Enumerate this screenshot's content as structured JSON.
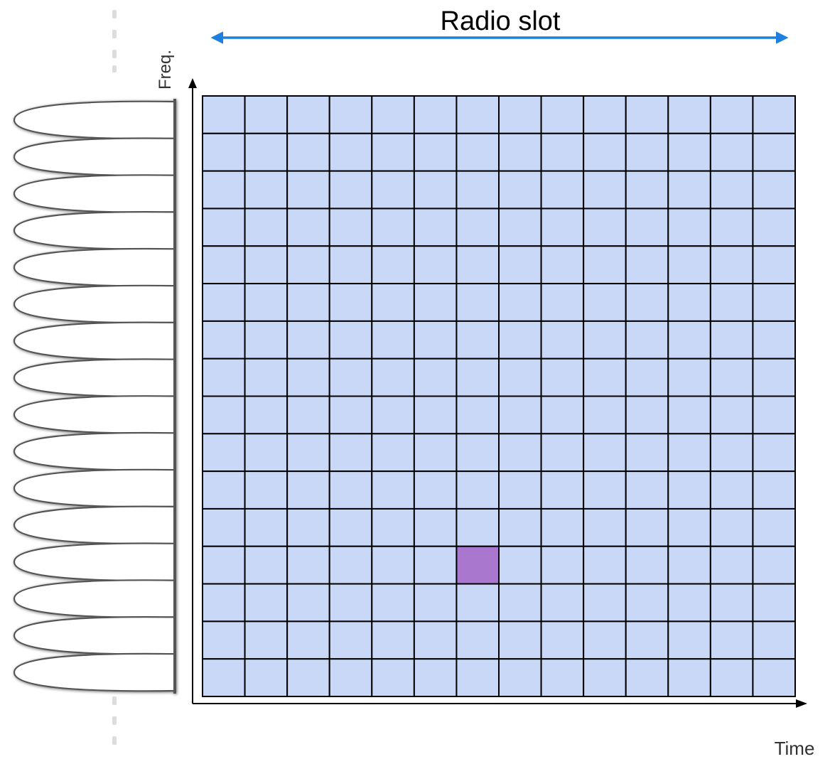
{
  "diagram": {
    "title": "Radio slot",
    "axis": {
      "y_label": "Freq.",
      "x_label": "Time"
    },
    "grid": {
      "rows": 16,
      "columns": 14,
      "highlighted_cell": {
        "row": 13,
        "column": 7
      }
    },
    "subcarrier_count": 16,
    "colors": {
      "cell_fill": "#c9d8f6",
      "highlight_fill": "#aa77cf",
      "grid_line": "#000000",
      "span_arrow": "#1f7fde",
      "subcarrier_stroke": "#555555"
    }
  }
}
